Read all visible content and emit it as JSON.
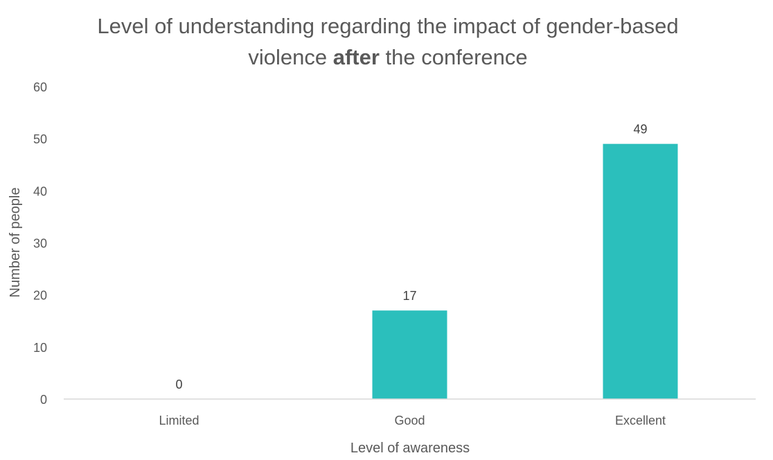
{
  "chart_data": {
    "type": "bar",
    "title_line1": "Level of understanding regarding the impact of gender-based",
    "title_line2_pre": "violence ",
    "title_line2_bold": "after",
    "title_line2_post": " the conference",
    "xlabel": "Level of awareness",
    "ylabel": "Number of people",
    "categories": [
      "Limited",
      "Good",
      "Excellent"
    ],
    "values": [
      0,
      17,
      49
    ],
    "ylim": [
      0,
      60
    ],
    "yticks": [
      0,
      10,
      20,
      30,
      40,
      50,
      60
    ],
    "grid": false,
    "legend": "none",
    "bar_color": "#2bbfbc",
    "axis_color": "#d9d9d9",
    "text_color": "#595959"
  }
}
